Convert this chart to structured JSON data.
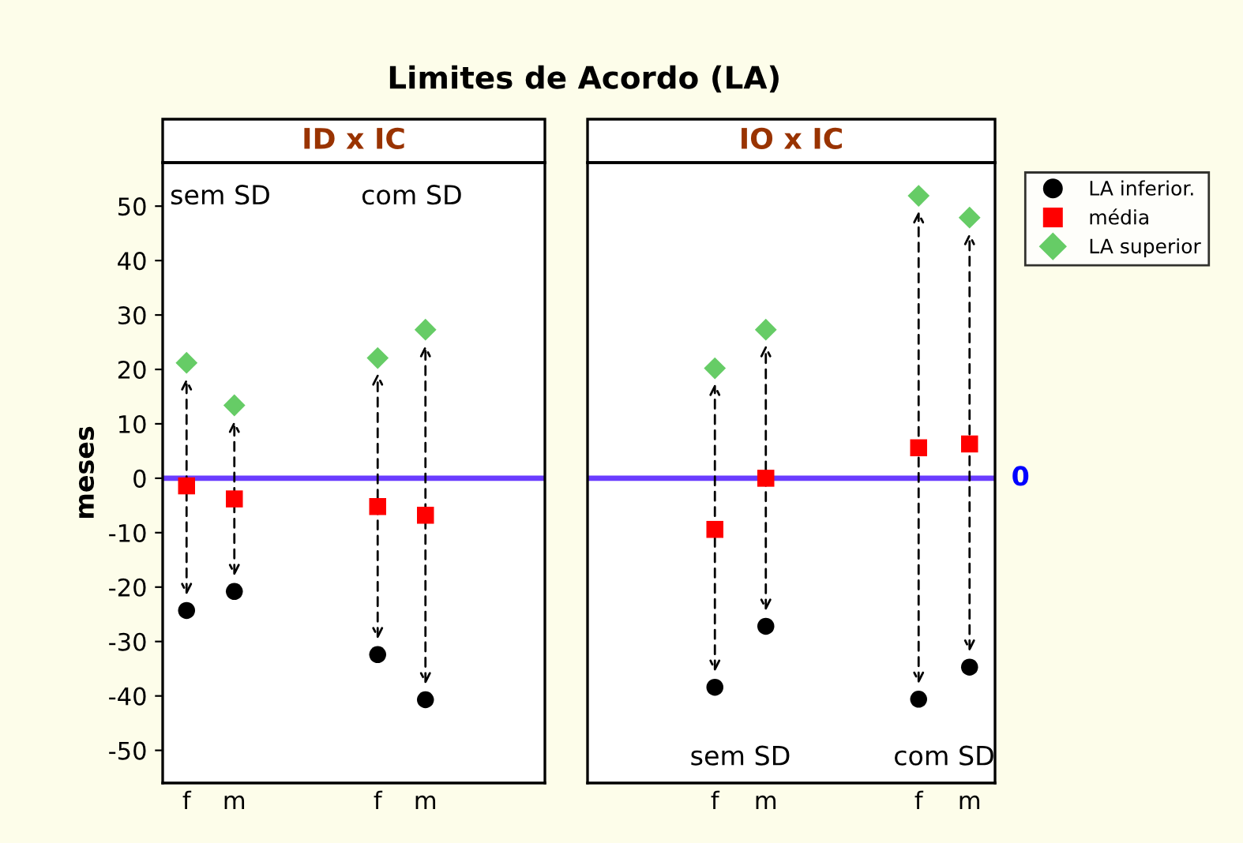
{
  "chart_data": [
    {
      "type": "scatter",
      "title": "Limites de Acordo (LA)",
      "subtitle": "ID x IC",
      "ylabel": "meses",
      "categories": [
        "f",
        "m",
        null,
        null,
        "f",
        "m",
        null,
        null
      ],
      "series": [
        {
          "color": "#000000",
          "marker": "circle",
          "values": [
            -24.3,
            -20.8,
            null,
            null,
            -32.4,
            -40.7,
            null,
            null
          ]
        },
        {
          "color": "#ff0000",
          "marker": "square",
          "values": [
            -1.4,
            -3.8,
            null,
            null,
            -5.2,
            -6.8,
            null,
            null
          ]
        },
        {
          "color": "#66cc66",
          "marker": "diamond",
          "values": [
            21.2,
            13.4,
            null,
            null,
            22.1,
            27.3,
            null,
            null
          ]
        }
      ],
      "ylim": [
        -56,
        58
      ],
      "yticks": [
        -50,
        -40,
        -30,
        -20,
        -10,
        0,
        10,
        20,
        30,
        40,
        50
      ],
      "ref_lines": [
        {
          "axis": "y",
          "value": 0,
          "label": null,
          "color": "#6a3cff"
        }
      ],
      "annotations": [
        "sem SD",
        "com SD"
      ],
      "grid": false,
      "legend": false
    },
    {
      "type": "scatter",
      "subtitle": "IO x IC",
      "categories": [
        null,
        null,
        "f",
        "m",
        null,
        null,
        "f",
        "m"
      ],
      "series": [
        {
          "name": "LA inferior.",
          "color": "#000000",
          "marker": "circle",
          "values": [
            null,
            null,
            -38.4,
            -27.2,
            null,
            null,
            -40.6,
            -34.7
          ]
        },
        {
          "name": "média",
          "color": "#ff0000",
          "marker": "square",
          "values": [
            null,
            null,
            -9.4,
            0,
            null,
            null,
            5.6,
            6.3
          ]
        },
        {
          "name": "LA superior",
          "color": "#66cc66",
          "marker": "diamond",
          "values": [
            null,
            null,
            20.2,
            27.3,
            null,
            null,
            51.9,
            47.9
          ]
        }
      ],
      "ylim": [
        -56,
        58
      ],
      "tick_labels": "x",
      "ref_lines": [
        {
          "axis": "y",
          "value": 0,
          "label": "0",
          "color": "#6a3cff"
        }
      ],
      "annotations": [
        "sem SD",
        "com SD"
      ],
      "grid": false,
      "legend": "top right"
    }
  ]
}
